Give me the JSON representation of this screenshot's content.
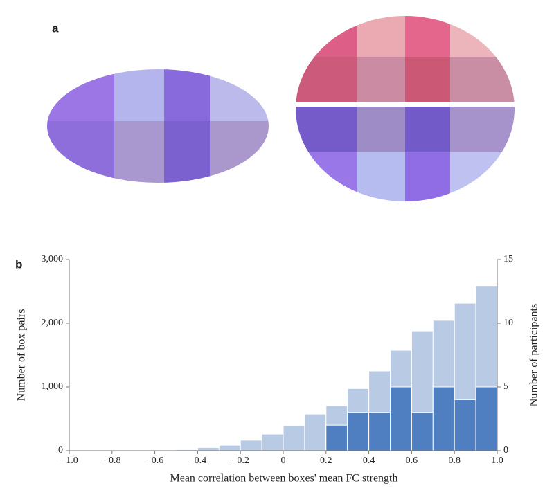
{
  "panel_a": {
    "label": "a"
  },
  "chart_data": {
    "type": "histogram",
    "panel_label": "b",
    "x_label": "Mean correlation between boxes' mean FC strength",
    "y_label": "Number of box pairs",
    "y2_label": "Number of participants",
    "bins": [
      -1.0,
      -0.9,
      -0.8,
      -0.7,
      -0.6,
      -0.5,
      -0.4,
      -0.3,
      -0.2,
      -0.1,
      0,
      0.1,
      0.2,
      0.3,
      0.4,
      0.5,
      0.6,
      0.7,
      0.8,
      0.9,
      1.0
    ],
    "series": [
      {
        "color": "#b9cbe4",
        "values": [
          0,
          0,
          0,
          0,
          5,
          15,
          50,
          85,
          165,
          260,
          390,
          575,
          705,
          975,
          1250,
          1575,
          1880,
          2045,
          2315,
          2590
        ]
      },
      {
        "color": "#4f7fc0",
        "axis": "y2",
        "values": [
          0,
          0,
          0,
          0,
          0,
          0,
          0,
          0,
          0,
          0,
          0,
          0,
          2,
          3,
          3,
          5,
          3,
          5,
          4,
          5
        ]
      }
    ],
    "xlim": [
      -1.0,
      1.0
    ],
    "xticks": [
      {
        "value": -1.0,
        "label": "−1.0"
      },
      {
        "value": -0.8,
        "label": "−0.8"
      },
      {
        "value": -0.6,
        "label": "−0.6"
      },
      {
        "value": -0.4,
        "label": "−0.4"
      },
      {
        "value": -0.2,
        "label": "−0.2"
      },
      0,
      0.2,
      0.4,
      0.6,
      0.8,
      {
        "value": 1.0,
        "label": "1.0"
      }
    ],
    "ylim": [
      0,
      3000
    ],
    "yticks": [
      0,
      {
        "value": 1000,
        "label": "1,000"
      },
      {
        "value": 2000,
        "label": "2,000"
      },
      {
        "value": 3000,
        "label": "3,000"
      }
    ],
    "y2lim": [
      0,
      15
    ],
    "y2ticks": [
      0,
      5,
      10,
      15
    ]
  }
}
